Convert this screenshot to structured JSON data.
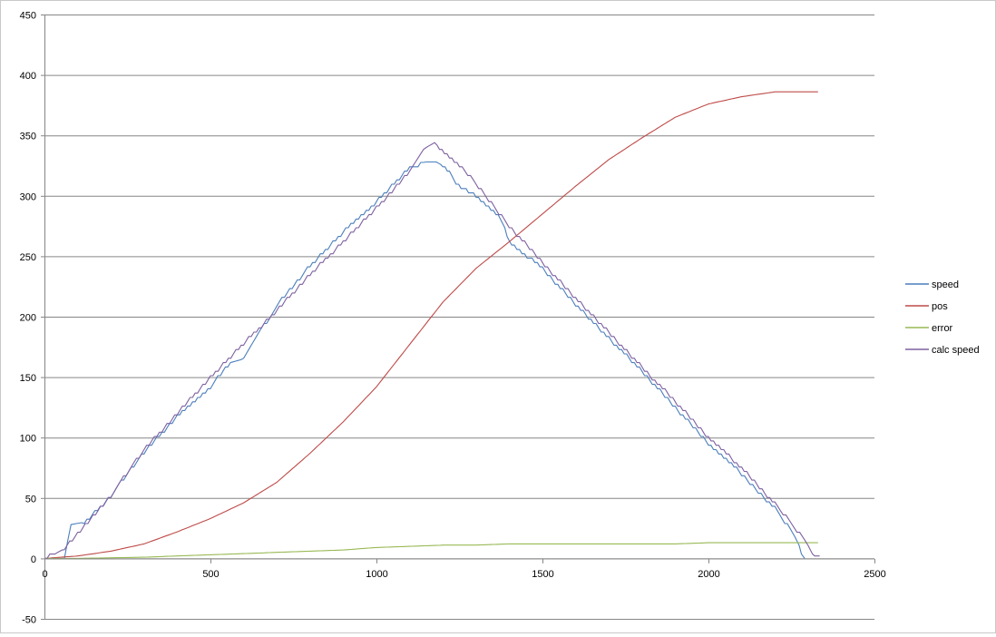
{
  "chart_data": {
    "type": "line",
    "title": "",
    "xlabel": "",
    "ylabel": "",
    "xlim": [
      0,
      2500
    ],
    "ylim": [
      -50,
      450
    ],
    "x_ticks": [
      0,
      500,
      1000,
      1500,
      2000,
      2500
    ],
    "y_ticks": [
      -50,
      0,
      50,
      100,
      150,
      200,
      250,
      300,
      350,
      400,
      450
    ],
    "grid": "horizontal major gridlines",
    "legend_position": "right",
    "series": [
      {
        "name": "speed",
        "color": "#4a7ebb",
        "step": 3.6,
        "points": [
          [
            0,
            0
          ],
          [
            60,
            0
          ],
          [
            70,
            15
          ],
          [
            80,
            28
          ],
          [
            120,
            30
          ],
          [
            160,
            40
          ],
          [
            200,
            52
          ],
          [
            300,
            88
          ],
          [
            400,
            117
          ],
          [
            500,
            142
          ],
          [
            560,
            162
          ],
          [
            600,
            165
          ],
          [
            700,
            210
          ],
          [
            800,
            242
          ],
          [
            900,
            270
          ],
          [
            1000,
            295
          ],
          [
            1100,
            323
          ],
          [
            1150,
            328
          ],
          [
            1180,
            328
          ],
          [
            1200,
            325
          ],
          [
            1220,
            320
          ],
          [
            1240,
            310
          ],
          [
            1300,
            300
          ],
          [
            1360,
            285
          ],
          [
            1380,
            278
          ],
          [
            1400,
            262
          ],
          [
            1500,
            240
          ],
          [
            1600,
            210
          ],
          [
            1700,
            182
          ],
          [
            1800,
            155
          ],
          [
            1900,
            125
          ],
          [
            2000,
            95
          ],
          [
            2100,
            70
          ],
          [
            2150,
            55
          ],
          [
            2200,
            42
          ],
          [
            2260,
            18
          ],
          [
            2280,
            5
          ],
          [
            2290,
            0
          ]
        ]
      },
      {
        "name": "pos",
        "color": "#be4b48",
        "step": 0,
        "points": [
          [
            0,
            0
          ],
          [
            50,
            1
          ],
          [
            100,
            2
          ],
          [
            200,
            6
          ],
          [
            300,
            12
          ],
          [
            400,
            22
          ],
          [
            500,
            33
          ],
          [
            600,
            46
          ],
          [
            700,
            63
          ],
          [
            800,
            87
          ],
          [
            900,
            113
          ],
          [
            1000,
            142
          ],
          [
            1100,
            177
          ],
          [
            1200,
            212
          ],
          [
            1300,
            240
          ],
          [
            1400,
            262
          ],
          [
            1500,
            285
          ],
          [
            1600,
            308
          ],
          [
            1700,
            330
          ],
          [
            1800,
            348
          ],
          [
            1900,
            365
          ],
          [
            2000,
            376
          ],
          [
            2100,
            382
          ],
          [
            2200,
            386
          ],
          [
            2250,
            386
          ],
          [
            2330,
            386
          ]
        ]
      },
      {
        "name": "error",
        "color": "#98b954",
        "step": 0,
        "points": [
          [
            0,
            0
          ],
          [
            100,
            0
          ],
          [
            200,
            0.5
          ],
          [
            300,
            1
          ],
          [
            400,
            2
          ],
          [
            500,
            3
          ],
          [
            600,
            4
          ],
          [
            700,
            5
          ],
          [
            800,
            6
          ],
          [
            900,
            7
          ],
          [
            1000,
            9
          ],
          [
            1100,
            10
          ],
          [
            1200,
            11
          ],
          [
            1300,
            11
          ],
          [
            1400,
            12
          ],
          [
            1500,
            12
          ],
          [
            1600,
            12
          ],
          [
            1700,
            12
          ],
          [
            1800,
            12
          ],
          [
            1900,
            12
          ],
          [
            2000,
            13
          ],
          [
            2100,
            13
          ],
          [
            2200,
            13
          ],
          [
            2330,
            13
          ]
        ]
      },
      {
        "name": "calc speed",
        "color": "#7d60a0",
        "step": 3.6,
        "points": [
          [
            0,
            0
          ],
          [
            40,
            5
          ],
          [
            60,
            8
          ],
          [
            100,
            20
          ],
          [
            200,
            52
          ],
          [
            300,
            90
          ],
          [
            400,
            120
          ],
          [
            500,
            150
          ],
          [
            600,
            178
          ],
          [
            700,
            205
          ],
          [
            800,
            235
          ],
          [
            900,
            262
          ],
          [
            1000,
            290
          ],
          [
            1100,
            320
          ],
          [
            1150,
            340
          ],
          [
            1175,
            344
          ],
          [
            1190,
            340
          ],
          [
            1250,
            325
          ],
          [
            1300,
            310
          ],
          [
            1400,
            275
          ],
          [
            1500,
            245
          ],
          [
            1600,
            215
          ],
          [
            1700,
            187
          ],
          [
            1800,
            158
          ],
          [
            1900,
            130
          ],
          [
            2000,
            100
          ],
          [
            2100,
            75
          ],
          [
            2200,
            45
          ],
          [
            2250,
            30
          ],
          [
            2300,
            10
          ],
          [
            2320,
            2
          ],
          [
            2335,
            2
          ]
        ]
      }
    ]
  }
}
